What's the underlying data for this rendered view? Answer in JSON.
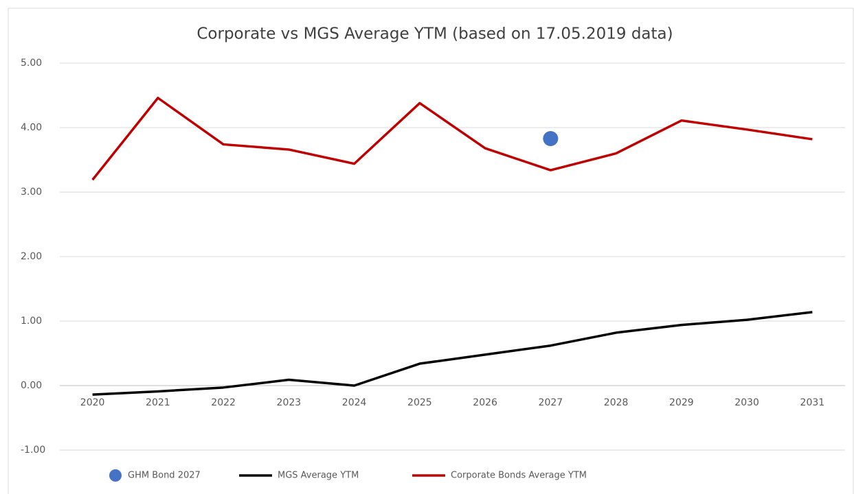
{
  "chart_data": {
    "type": "line",
    "title": "Corporate vs MGS Average YTM (based on 17.05.2019 data)",
    "categories": [
      "2020",
      "2021",
      "2022",
      "2023",
      "2024",
      "2025",
      "2026",
      "2027",
      "2028",
      "2029",
      "2030",
      "2031"
    ],
    "series": [
      {
        "name": "GHM Bond 2027",
        "type": "scatter",
        "color": "#4472c4",
        "values": [
          null,
          null,
          null,
          null,
          null,
          null,
          null,
          3.83,
          null,
          null,
          null,
          null
        ]
      },
      {
        "name": "MGS Average YTM",
        "type": "line",
        "color": "#000000",
        "values": [
          -0.14,
          -0.09,
          -0.03,
          0.09,
          0.0,
          0.34,
          0.48,
          0.62,
          0.82,
          0.94,
          1.02,
          1.14
        ]
      },
      {
        "name": "Corporate Bonds Average YTM",
        "type": "line",
        "color": "#c00000",
        "values": [
          3.19,
          4.46,
          3.74,
          3.66,
          3.44,
          4.38,
          3.68,
          3.34,
          3.6,
          4.11,
          3.97,
          3.82
        ]
      }
    ],
    "ylim": [
      -1,
      5
    ],
    "yticks": [
      {
        "value": -1,
        "label": "-1.00"
      },
      {
        "value": 0,
        "label": "0.00"
      },
      {
        "value": 1,
        "label": "1.00"
      },
      {
        "value": 2,
        "label": "2.00"
      },
      {
        "value": 3,
        "label": "3.00"
      },
      {
        "value": 4,
        "label": "4.00"
      },
      {
        "value": 5,
        "label": "5.00"
      }
    ],
    "grid": true,
    "legend": "bottom"
  }
}
